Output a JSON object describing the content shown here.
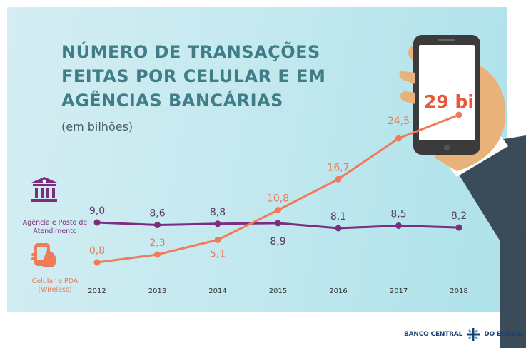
{
  "title_lines": [
    "NÚMERO DE TRANSAÇÕES",
    "FEITAS POR CELULAR E EM",
    "AGÊNCIAS BANCÁRIAS"
  ],
  "subtitle": "(em bilhões)",
  "highlight_label": "29 bi",
  "legend": {
    "agencia": "Agência e Posto de Atendimento",
    "celular": "Celular e PDA (Wireless)"
  },
  "footer": {
    "left": "BANCO CENTRAL",
    "right": "DO BRASIL"
  },
  "icons": [
    "bank-building-icon",
    "mobile-phone-icon",
    "hand-holding-phone-illustration",
    "bcb-logo-icon"
  ],
  "colors": {
    "agencia": "#7b2d80",
    "celular": "#f07b5a",
    "title": "#3f7e86",
    "highlight": "#e8573a",
    "logo": "#1d3f73"
  },
  "chart_data": {
    "type": "line",
    "x": [
      "2012",
      "2013",
      "2014",
      "2015",
      "2016",
      "2017",
      "2018"
    ],
    "series": [
      {
        "name": "Agência e Posto de Atendimento",
        "values": [
          9.0,
          8.6,
          8.8,
          8.9,
          8.1,
          8.5,
          8.2
        ],
        "labels": [
          "9,0",
          "8,6",
          "8,8",
          "8,9",
          "8,1",
          "8,5",
          "8,2"
        ]
      },
      {
        "name": "Celular e PDA (Wireless)",
        "values": [
          0.8,
          2.3,
          5.1,
          10.8,
          16.7,
          24.5,
          29.0
        ],
        "labels": [
          "0,8",
          "2,3",
          "5,1",
          "10,8",
          "16,7",
          "24,5",
          ""
        ]
      }
    ],
    "title": "NÚMERO DE TRANSAÇÕES FEITAS POR CELULAR E EM AGÊNCIAS BANCÁRIAS",
    "subtitle": "(em bilhões)",
    "ylim": [
      0,
      30
    ],
    "grid": false,
    "legend": "left"
  }
}
